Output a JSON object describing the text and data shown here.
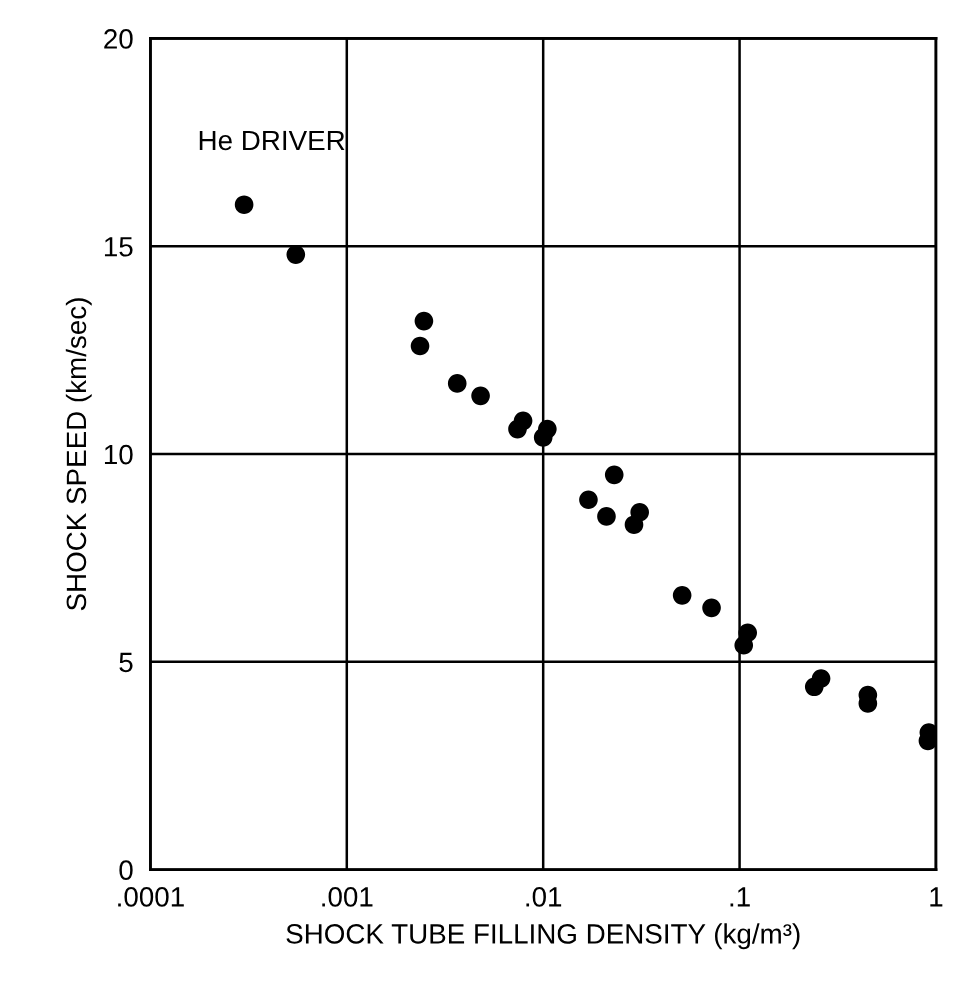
{
  "chart_data": {
    "type": "scatter",
    "xlabel": "SHOCK TUBE FILLING DENSITY (kg/m³)",
    "ylabel": "SHOCK SPEED (km/sec)",
    "annotations": [
      "He DRIVER"
    ],
    "log": "x",
    "xlim": [
      0.0001,
      1
    ],
    "xticks": [
      {
        "value": 0.0001,
        "label": ".0001"
      },
      {
        "value": 0.001,
        "label": ".001"
      },
      {
        "value": 0.01,
        "label": ".01"
      },
      {
        "value": 0.1,
        "label": ".1"
      },
      1
    ],
    "ylim": [
      0,
      20
    ],
    "yticks": [
      0,
      5,
      10,
      15,
      20
    ],
    "grid": true,
    "marker": "circle",
    "series": [
      {
        "color": "#000000",
        "x": [
          0.0003,
          0.00055,
          0.00247,
          0.00236,
          0.00365,
          0.0048,
          0.0074,
          0.0079,
          0.01,
          0.0105,
          0.017,
          0.021,
          0.023,
          0.029,
          0.031,
          0.051,
          0.072,
          0.105,
          0.11,
          0.24,
          0.26,
          0.45,
          0.45,
          0.91,
          0.92
        ],
        "values": [
          16.0,
          14.8,
          13.2,
          12.6,
          11.7,
          11.4,
          10.6,
          10.8,
          10.4,
          10.6,
          8.9,
          8.5,
          9.5,
          8.3,
          8.6,
          6.6,
          6.3,
          5.4,
          5.7,
          4.4,
          4.6,
          4.0,
          4.2,
          3.1,
          3.3
        ]
      }
    ]
  }
}
